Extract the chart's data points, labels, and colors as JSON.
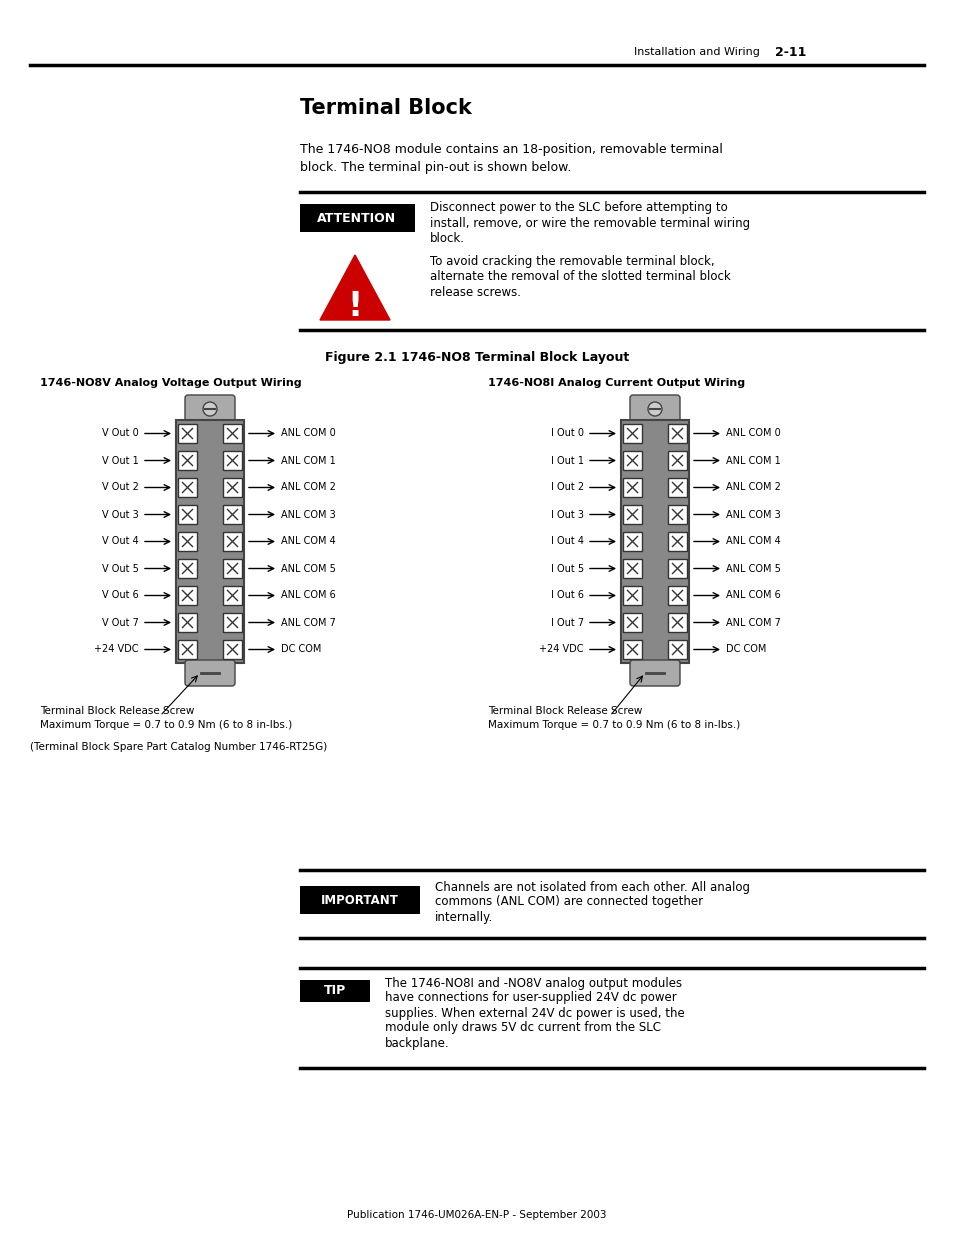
{
  "page_header_text": "Installation and Wiring",
  "page_number": "2-11",
  "title": "Terminal Block",
  "intro_text_1": "The 1746-NO8 module contains an 18-position, removable terminal",
  "intro_text_2": "block. The terminal pin-out is shown below.",
  "attention_label": "ATTENTION",
  "attention_text1_1": "Disconnect power to the SLC before attempting to",
  "attention_text1_2": "install, remove, or wire the removable terminal wiring",
  "attention_text1_3": "block.",
  "attention_text2_1": "To avoid cracking the removable terminal block,",
  "attention_text2_2": "alternate the removal of the slotted terminal block",
  "attention_text2_3": "release screws.",
  "figure_caption": "Figure 2.1 1746-NO8 Terminal Block Layout",
  "left_diagram_title": "1746-NO8V Analog Voltage Output Wiring",
  "right_diagram_title": "1746-NO8I Analog Current Output Wiring",
  "left_labels": [
    "V Out 0",
    "V Out 1",
    "V Out 2",
    "V Out 3",
    "V Out 4",
    "V Out 5",
    "V Out 6",
    "V Out 7",
    "+24 VDC"
  ],
  "right_labels": [
    "I Out 0",
    "I Out 1",
    "I Out 2",
    "I Out 3",
    "I Out 4",
    "I Out 5",
    "I Out 6",
    "I Out 7",
    "+24 VDC"
  ],
  "right_side_labels": [
    "ANL COM 0",
    "ANL COM 1",
    "ANL COM 2",
    "ANL COM 3",
    "ANL COM 4",
    "ANL COM 5",
    "ANL COM 6",
    "ANL COM 7",
    "DC COM"
  ],
  "screw_note_1": "Terminal Block Release Screw",
  "screw_note_2": "Maximum Torque = 0.7 to 0.9 Nm (6 to 8 in-lbs.)",
  "catalog_note": "(Terminal Block Spare Part Catalog Number 1746-RT25G)",
  "important_label": "IMPORTANT",
  "important_text_1": "Channels are not isolated from each other. All analog",
  "important_text_2": "commons (ANL COM) are connected together",
  "important_text_3": "internally.",
  "tip_label": "TIP",
  "tip_text_1": "The 1746-NO8I and -NO8V analog output modules",
  "tip_text_2": "have connections for user-supplied 24V dc power",
  "tip_text_3": "supplies. When external 24V dc power is used, the",
  "tip_text_4": "module only draws 5V dc current from the SLC",
  "tip_text_5": "backplane.",
  "footer_text": "Publication 1746-UM026A-EN-P - September 2003",
  "bg_color": "#ffffff",
  "text_color": "#000000",
  "header_bar_color": "#000000",
  "attention_bg": "#000000",
  "attention_text_color": "#ffffff",
  "important_bg": "#000000",
  "tip_bg": "#000000",
  "terminal_bg": "#888888",
  "terminal_top_bg": "#aaaaaa"
}
